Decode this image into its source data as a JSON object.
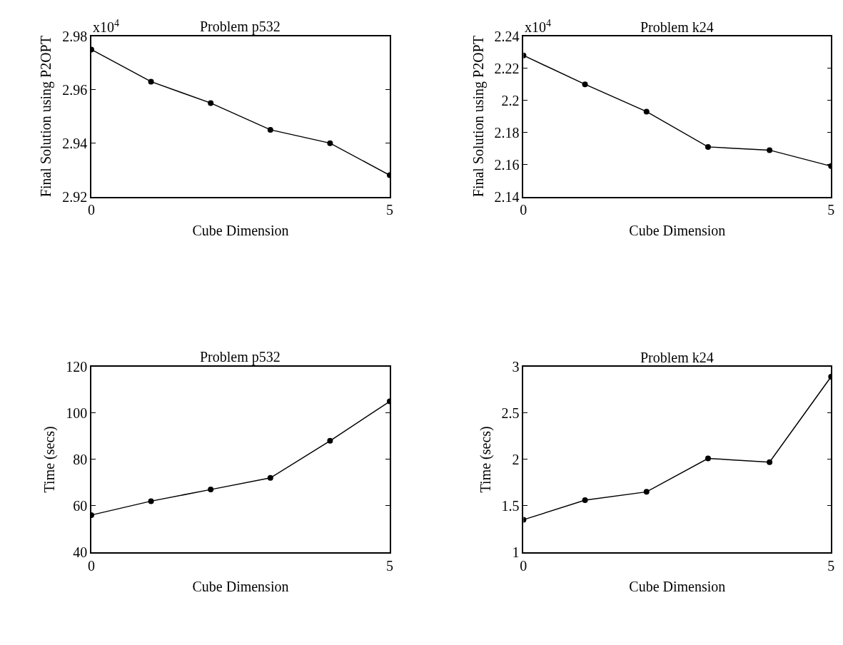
{
  "chart_data": [
    {
      "type": "line",
      "title": "Problem p532",
      "xlabel": "Cube Dimension",
      "ylabel": "Final Solution using P2OPT",
      "x": [
        0,
        1,
        2,
        3,
        4,
        5
      ],
      "series": [
        {
          "color": "#000000",
          "values": [
            2.975,
            2.963,
            2.955,
            2.945,
            2.94,
            2.928
          ]
        }
      ],
      "xlim": [
        0,
        5
      ],
      "xticks": [
        0,
        5
      ],
      "ylim": [
        2.92,
        2.98
      ],
      "yticks": [
        2.92,
        2.94,
        2.96,
        2.98
      ],
      "annotations": [
        "x10$^{4}$"
      ],
      "marker": "circle"
    },
    {
      "type": "line",
      "title": "Problem k24",
      "xlabel": "Cube Dimension",
      "ylabel": "Final Solution using P2OPT",
      "x": [
        0,
        1,
        2,
        3,
        4,
        5
      ],
      "series": [
        {
          "color": "#000000",
          "values": [
            2.228,
            2.21,
            2.193,
            2.171,
            2.169,
            2.159
          ]
        }
      ],
      "xlim": [
        0,
        5
      ],
      "xticks": [
        0,
        5
      ],
      "ylim": [
        2.14,
        2.24
      ],
      "yticks": [
        2.14,
        2.16,
        2.18,
        2.2,
        2.22,
        2.24
      ],
      "annotations": [
        "x10$^{4}$"
      ],
      "marker": "circle"
    },
    {
      "type": "line",
      "title": "Problem p532",
      "xlabel": "Cube Dimension",
      "ylabel": "Time (secs)",
      "x": [
        0,
        1,
        2,
        3,
        4,
        5
      ],
      "series": [
        {
          "color": "#000000",
          "values": [
            56,
            62,
            67,
            72,
            88,
            105
          ]
        }
      ],
      "xlim": [
        0,
        5
      ],
      "xticks": [
        0,
        5
      ],
      "ylim": [
        40,
        120
      ],
      "yticks": [
        40,
        60,
        80,
        100,
        120
      ],
      "marker": "circle"
    },
    {
      "type": "line",
      "title": "Problem k24",
      "xlabel": "Cube Dimension",
      "ylabel": "Time (secs)",
      "x": [
        0,
        1,
        2,
        3,
        4,
        5
      ],
      "series": [
        {
          "color": "#000000",
          "values": [
            1.35,
            1.56,
            1.65,
            2.01,
            1.97,
            2.89
          ]
        }
      ],
      "xlim": [
        0,
        5
      ],
      "xticks": [
        0,
        5
      ],
      "ylim": [
        1,
        3
      ],
      "yticks": [
        1,
        1.5,
        2,
        2.5,
        3
      ],
      "marker": "circle"
    }
  ]
}
